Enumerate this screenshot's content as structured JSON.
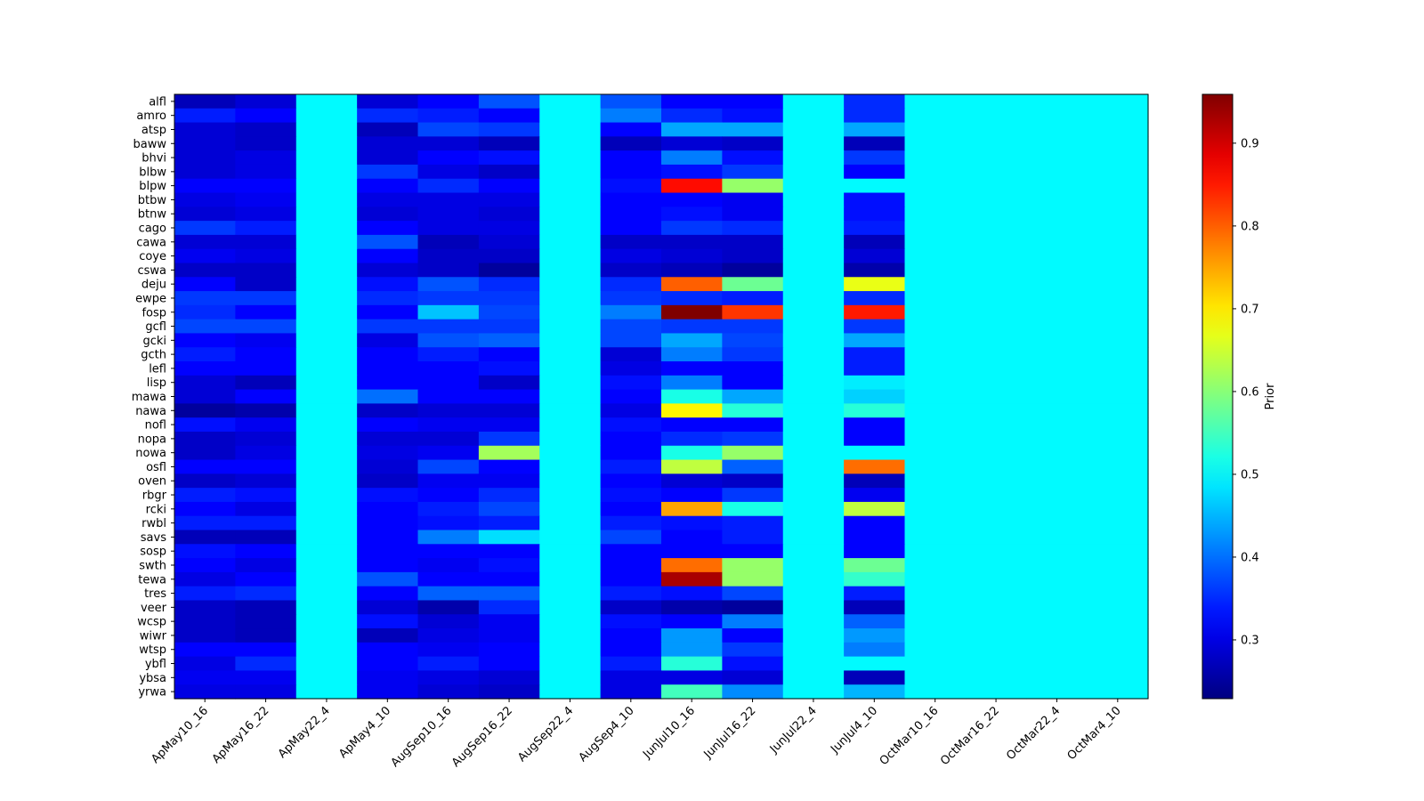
{
  "chart_data": {
    "type": "heatmap",
    "title": "",
    "xlabel": "",
    "ylabel": "",
    "colormap": "jet",
    "colorbar": {
      "label": "Prior",
      "range": [
        0.229,
        0.959
      ],
      "ticks": [
        "0.3",
        "0.4",
        "0.5",
        "0.6",
        "0.7",
        "0.8",
        "0.9"
      ],
      "tick_values": [
        0.3,
        0.4,
        0.5,
        0.6,
        0.7,
        0.8,
        0.9
      ]
    },
    "x_categories": [
      "ApMay10_16",
      "ApMay16_22",
      "ApMay22_4",
      "ApMay4_10",
      "AugSep10_16",
      "AugSep16_22",
      "AugSep22_4",
      "AugSep4_10",
      "JunJul10_16",
      "JunJul16_22",
      "JunJul22_4",
      "JunJul4_10",
      "OctMar10_16",
      "OctMar16_22",
      "OctMar22_4",
      "OctMar4_10"
    ],
    "y_categories": [
      "alfl",
      "amro",
      "atsp",
      "baww",
      "bhvi",
      "blbw",
      "blpw",
      "btbw",
      "btnw",
      "cago",
      "cawa",
      "coye",
      "cswa",
      "deju",
      "ewpe",
      "fosp",
      "gcfl",
      "gcki",
      "gcth",
      "lefl",
      "lisp",
      "mawa",
      "nawa",
      "nofl",
      "nopa",
      "nowa",
      "osfl",
      "oven",
      "rbgr",
      "rcki",
      "rwbl",
      "savs",
      "sosp",
      "swth",
      "tewa",
      "tres",
      "veer",
      "wcsp",
      "wiwr",
      "wtsp",
      "ybfl",
      "ybsa",
      "yrwa"
    ],
    "values": [
      [
        0.27,
        0.29,
        0.5,
        0.29,
        0.32,
        0.38,
        0.5,
        0.38,
        0.32,
        0.32,
        0.5,
        0.35,
        0.5,
        0.5,
        0.5,
        0.5
      ],
      [
        0.34,
        0.32,
        0.5,
        0.35,
        0.34,
        0.32,
        0.5,
        0.41,
        0.35,
        0.33,
        0.5,
        0.35,
        0.5,
        0.5,
        0.5,
        0.5
      ],
      [
        0.29,
        0.28,
        0.5,
        0.27,
        0.37,
        0.36,
        0.5,
        0.32,
        0.44,
        0.44,
        0.5,
        0.44,
        0.5,
        0.5,
        0.5,
        0.5
      ],
      [
        0.29,
        0.28,
        0.5,
        0.29,
        0.29,
        0.27,
        0.5,
        0.27,
        0.29,
        0.28,
        0.5,
        0.27,
        0.5,
        0.5,
        0.5,
        0.5
      ],
      [
        0.29,
        0.3,
        0.5,
        0.29,
        0.32,
        0.33,
        0.5,
        0.32,
        0.41,
        0.33,
        0.5,
        0.36,
        0.5,
        0.5,
        0.5,
        0.5
      ],
      [
        0.29,
        0.3,
        0.5,
        0.36,
        0.3,
        0.28,
        0.5,
        0.32,
        0.33,
        0.36,
        0.5,
        0.32,
        0.5,
        0.5,
        0.5,
        0.5
      ],
      [
        0.32,
        0.32,
        0.5,
        0.32,
        0.35,
        0.32,
        0.5,
        0.33,
        0.86,
        0.61,
        0.5,
        0.5,
        0.5,
        0.5,
        0.5,
        0.5
      ],
      [
        0.3,
        0.31,
        0.5,
        0.3,
        0.3,
        0.3,
        0.5,
        0.32,
        0.32,
        0.31,
        0.5,
        0.33,
        0.5,
        0.5,
        0.5,
        0.5
      ],
      [
        0.29,
        0.3,
        0.5,
        0.29,
        0.3,
        0.29,
        0.5,
        0.32,
        0.33,
        0.31,
        0.5,
        0.33,
        0.5,
        0.5,
        0.5,
        0.5
      ],
      [
        0.36,
        0.34,
        0.5,
        0.32,
        0.3,
        0.3,
        0.5,
        0.32,
        0.36,
        0.35,
        0.5,
        0.34,
        0.5,
        0.5,
        0.5,
        0.5
      ],
      [
        0.29,
        0.29,
        0.5,
        0.38,
        0.27,
        0.29,
        0.5,
        0.28,
        0.28,
        0.28,
        0.5,
        0.27,
        0.5,
        0.5,
        0.5,
        0.5
      ],
      [
        0.31,
        0.3,
        0.5,
        0.32,
        0.28,
        0.28,
        0.5,
        0.3,
        0.29,
        0.28,
        0.5,
        0.29,
        0.5,
        0.5,
        0.5,
        0.5
      ],
      [
        0.28,
        0.28,
        0.5,
        0.29,
        0.28,
        0.25,
        0.5,
        0.28,
        0.27,
        0.25,
        0.5,
        0.26,
        0.5,
        0.5,
        0.5,
        0.5
      ],
      [
        0.32,
        0.28,
        0.5,
        0.33,
        0.38,
        0.35,
        0.5,
        0.35,
        0.8,
        0.58,
        0.5,
        0.67,
        0.5,
        0.5,
        0.5,
        0.5
      ],
      [
        0.36,
        0.36,
        0.5,
        0.35,
        0.36,
        0.36,
        0.5,
        0.36,
        0.35,
        0.34,
        0.5,
        0.35,
        0.5,
        0.5,
        0.5,
        0.5
      ],
      [
        0.35,
        0.32,
        0.5,
        0.32,
        0.46,
        0.37,
        0.5,
        0.41,
        0.96,
        0.83,
        0.5,
        0.85,
        0.5,
        0.5,
        0.5,
        0.5
      ],
      [
        0.37,
        0.37,
        0.5,
        0.36,
        0.36,
        0.36,
        0.5,
        0.37,
        0.36,
        0.36,
        0.5,
        0.36,
        0.5,
        0.5,
        0.5,
        0.5
      ],
      [
        0.32,
        0.31,
        0.5,
        0.3,
        0.38,
        0.39,
        0.5,
        0.37,
        0.44,
        0.37,
        0.5,
        0.44,
        0.5,
        0.5,
        0.5,
        0.5
      ],
      [
        0.34,
        0.32,
        0.5,
        0.32,
        0.34,
        0.32,
        0.5,
        0.29,
        0.41,
        0.36,
        0.5,
        0.34,
        0.5,
        0.5,
        0.5,
        0.5
      ],
      [
        0.32,
        0.32,
        0.5,
        0.32,
        0.32,
        0.33,
        0.5,
        0.3,
        0.32,
        0.32,
        0.5,
        0.34,
        0.5,
        0.5,
        0.5,
        0.5
      ],
      [
        0.29,
        0.27,
        0.5,
        0.32,
        0.32,
        0.28,
        0.5,
        0.33,
        0.41,
        0.32,
        0.5,
        0.49,
        0.5,
        0.5,
        0.5,
        0.5
      ],
      [
        0.29,
        0.32,
        0.5,
        0.4,
        0.32,
        0.32,
        0.5,
        0.32,
        0.52,
        0.44,
        0.5,
        0.47,
        0.5,
        0.5,
        0.5,
        0.5
      ],
      [
        0.25,
        0.26,
        0.5,
        0.28,
        0.29,
        0.29,
        0.5,
        0.3,
        0.69,
        0.53,
        0.5,
        0.53,
        0.5,
        0.5,
        0.5,
        0.5
      ],
      [
        0.33,
        0.31,
        0.5,
        0.32,
        0.31,
        0.31,
        0.5,
        0.33,
        0.32,
        0.32,
        0.5,
        0.32,
        0.5,
        0.5,
        0.5,
        0.5
      ],
      [
        0.28,
        0.29,
        0.5,
        0.29,
        0.29,
        0.36,
        0.5,
        0.32,
        0.35,
        0.36,
        0.5,
        0.32,
        0.5,
        0.5,
        0.5,
        0.5
      ],
      [
        0.28,
        0.3,
        0.5,
        0.3,
        0.31,
        0.62,
        0.5,
        0.32,
        0.52,
        0.61,
        0.5,
        0.5,
        0.5,
        0.5,
        0.5,
        0.5
      ],
      [
        0.32,
        0.32,
        0.5,
        0.29,
        0.37,
        0.32,
        0.5,
        0.34,
        0.64,
        0.39,
        0.5,
        0.79,
        0.5,
        0.5,
        0.5,
        0.5
      ],
      [
        0.28,
        0.29,
        0.5,
        0.28,
        0.31,
        0.31,
        0.5,
        0.32,
        0.29,
        0.28,
        0.5,
        0.27,
        0.5,
        0.5,
        0.5,
        0.5
      ],
      [
        0.34,
        0.33,
        0.5,
        0.33,
        0.32,
        0.35,
        0.5,
        0.33,
        0.32,
        0.36,
        0.5,
        0.31,
        0.5,
        0.5,
        0.5,
        0.5
      ],
      [
        0.32,
        0.3,
        0.5,
        0.32,
        0.34,
        0.37,
        0.5,
        0.32,
        0.75,
        0.52,
        0.5,
        0.64,
        0.5,
        0.5,
        0.5,
        0.5
      ],
      [
        0.34,
        0.34,
        0.5,
        0.32,
        0.33,
        0.34,
        0.5,
        0.34,
        0.33,
        0.34,
        0.5,
        0.32,
        0.5,
        0.5,
        0.5,
        0.5
      ],
      [
        0.27,
        0.27,
        0.5,
        0.32,
        0.41,
        0.48,
        0.5,
        0.37,
        0.32,
        0.34,
        0.5,
        0.32,
        0.5,
        0.5,
        0.5,
        0.5
      ],
      [
        0.33,
        0.32,
        0.5,
        0.32,
        0.32,
        0.32,
        0.5,
        0.32,
        0.32,
        0.32,
        0.5,
        0.32,
        0.5,
        0.5,
        0.5,
        0.5
      ],
      [
        0.32,
        0.3,
        0.5,
        0.32,
        0.31,
        0.33,
        0.5,
        0.32,
        0.79,
        0.61,
        0.5,
        0.58,
        0.5,
        0.5,
        0.5,
        0.5
      ],
      [
        0.3,
        0.32,
        0.5,
        0.38,
        0.32,
        0.32,
        0.5,
        0.32,
        0.93,
        0.61,
        0.5,
        0.54,
        0.5,
        0.5,
        0.5,
        0.5
      ],
      [
        0.34,
        0.35,
        0.5,
        0.32,
        0.39,
        0.39,
        0.5,
        0.34,
        0.33,
        0.37,
        0.5,
        0.34,
        0.5,
        0.5,
        0.5,
        0.5
      ],
      [
        0.28,
        0.27,
        0.5,
        0.29,
        0.26,
        0.35,
        0.5,
        0.28,
        0.26,
        0.25,
        0.5,
        0.27,
        0.5,
        0.5,
        0.5,
        0.5
      ],
      [
        0.28,
        0.27,
        0.5,
        0.33,
        0.29,
        0.31,
        0.5,
        0.33,
        0.32,
        0.41,
        0.5,
        0.39,
        0.5,
        0.5,
        0.5,
        0.5
      ],
      [
        0.28,
        0.27,
        0.5,
        0.27,
        0.3,
        0.31,
        0.5,
        0.32,
        0.43,
        0.32,
        0.5,
        0.43,
        0.5,
        0.5,
        0.5,
        0.5
      ],
      [
        0.32,
        0.32,
        0.5,
        0.32,
        0.31,
        0.32,
        0.5,
        0.32,
        0.43,
        0.36,
        0.5,
        0.41,
        0.5,
        0.5,
        0.5,
        0.5
      ],
      [
        0.3,
        0.35,
        0.5,
        0.32,
        0.34,
        0.32,
        0.5,
        0.34,
        0.53,
        0.33,
        0.5,
        0.5,
        0.5,
        0.5,
        0.5,
        0.5
      ],
      [
        0.31,
        0.31,
        0.5,
        0.31,
        0.3,
        0.29,
        0.5,
        0.3,
        0.3,
        0.29,
        0.5,
        0.27,
        0.5,
        0.5,
        0.5,
        0.5
      ],
      [
        0.3,
        0.3,
        0.5,
        0.31,
        0.29,
        0.28,
        0.5,
        0.3,
        0.55,
        0.42,
        0.5,
        0.45,
        0.5,
        0.5,
        0.5,
        0.5
      ]
    ]
  }
}
